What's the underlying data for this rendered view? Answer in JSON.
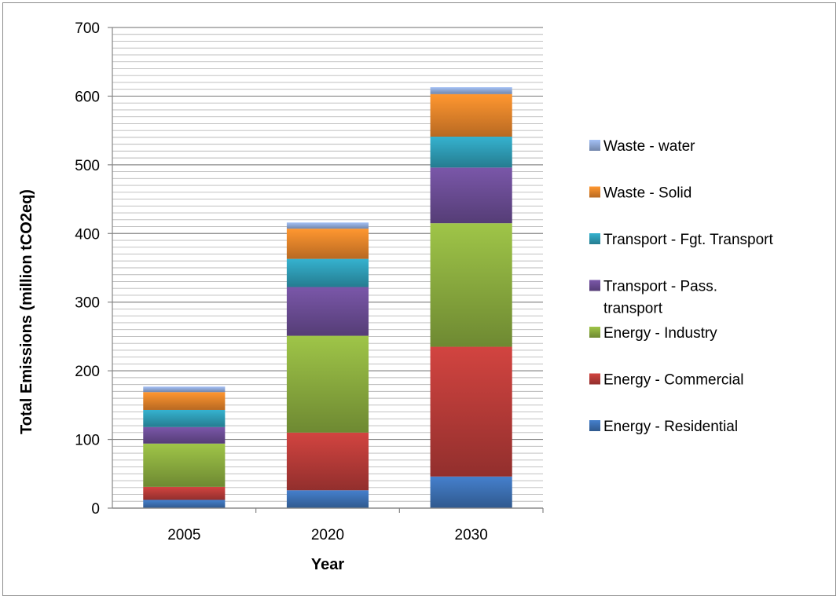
{
  "chart_data": {
    "type": "bar",
    "stacked": true,
    "title": "",
    "xlabel": "Year",
    "ylabel": "Total Emissions (million tCO2eq)",
    "ylim": [
      0,
      700
    ],
    "yticks": [
      0,
      100,
      200,
      300,
      400,
      500,
      600,
      700
    ],
    "minor_gridlines_every": 10,
    "grid": true,
    "legend_position": "right",
    "categories": [
      "2005",
      "2020",
      "2030"
    ],
    "series": [
      {
        "name": "Energy - Residential",
        "color": "#3C6FB2",
        "values": [
          12,
          26,
          46
        ]
      },
      {
        "name": "Energy - Commercial",
        "color": "#B73B38",
        "values": [
          19,
          84,
          189
        ]
      },
      {
        "name": "Energy - Industry",
        "color": "#8AAB3F",
        "values": [
          63,
          141,
          180
        ]
      },
      {
        "name": "Transport - Pass. transport",
        "color": "#6A4C93",
        "values": [
          24,
          71,
          81
        ]
      },
      {
        "name": "Transport - Fgt. Transport",
        "color": "#2E9BB4",
        "values": [
          25,
          41,
          45
        ]
      },
      {
        "name": "Waste - Solid",
        "color": "#E6832A",
        "values": [
          26,
          44,
          62
        ]
      },
      {
        "name": "Waste - water",
        "color": "#8FA8D6",
        "values": [
          8,
          9,
          10
        ]
      }
    ],
    "legend_order": [
      6,
      5,
      4,
      3,
      2,
      1,
      0
    ]
  }
}
